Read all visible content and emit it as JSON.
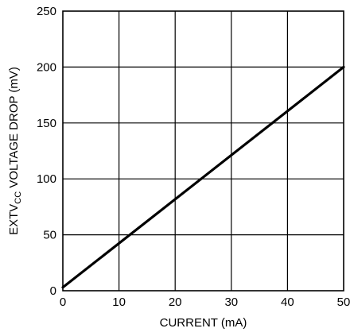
{
  "chart_data": {
    "type": "line",
    "xlabel": "CURRENT (mA)",
    "ylabel": {
      "prefix": "EXTV",
      "subscript": "CC",
      "suffix": " VOLTAGE DROP (mV)"
    },
    "xlim": [
      0,
      50
    ],
    "ylim": [
      0,
      250
    ],
    "x_ticks": [
      "0",
      "10",
      "20",
      "30",
      "40",
      "50"
    ],
    "y_ticks": [
      "0",
      "50",
      "100",
      "150",
      "200",
      "250"
    ],
    "x_tick_values": [
      0,
      10,
      20,
      30,
      40,
      50
    ],
    "y_tick_values": [
      0,
      50,
      100,
      150,
      200,
      250
    ],
    "grid": true,
    "series": [
      {
        "x": [
          0,
          50
        ],
        "y": [
          3,
          200
        ]
      }
    ]
  }
}
